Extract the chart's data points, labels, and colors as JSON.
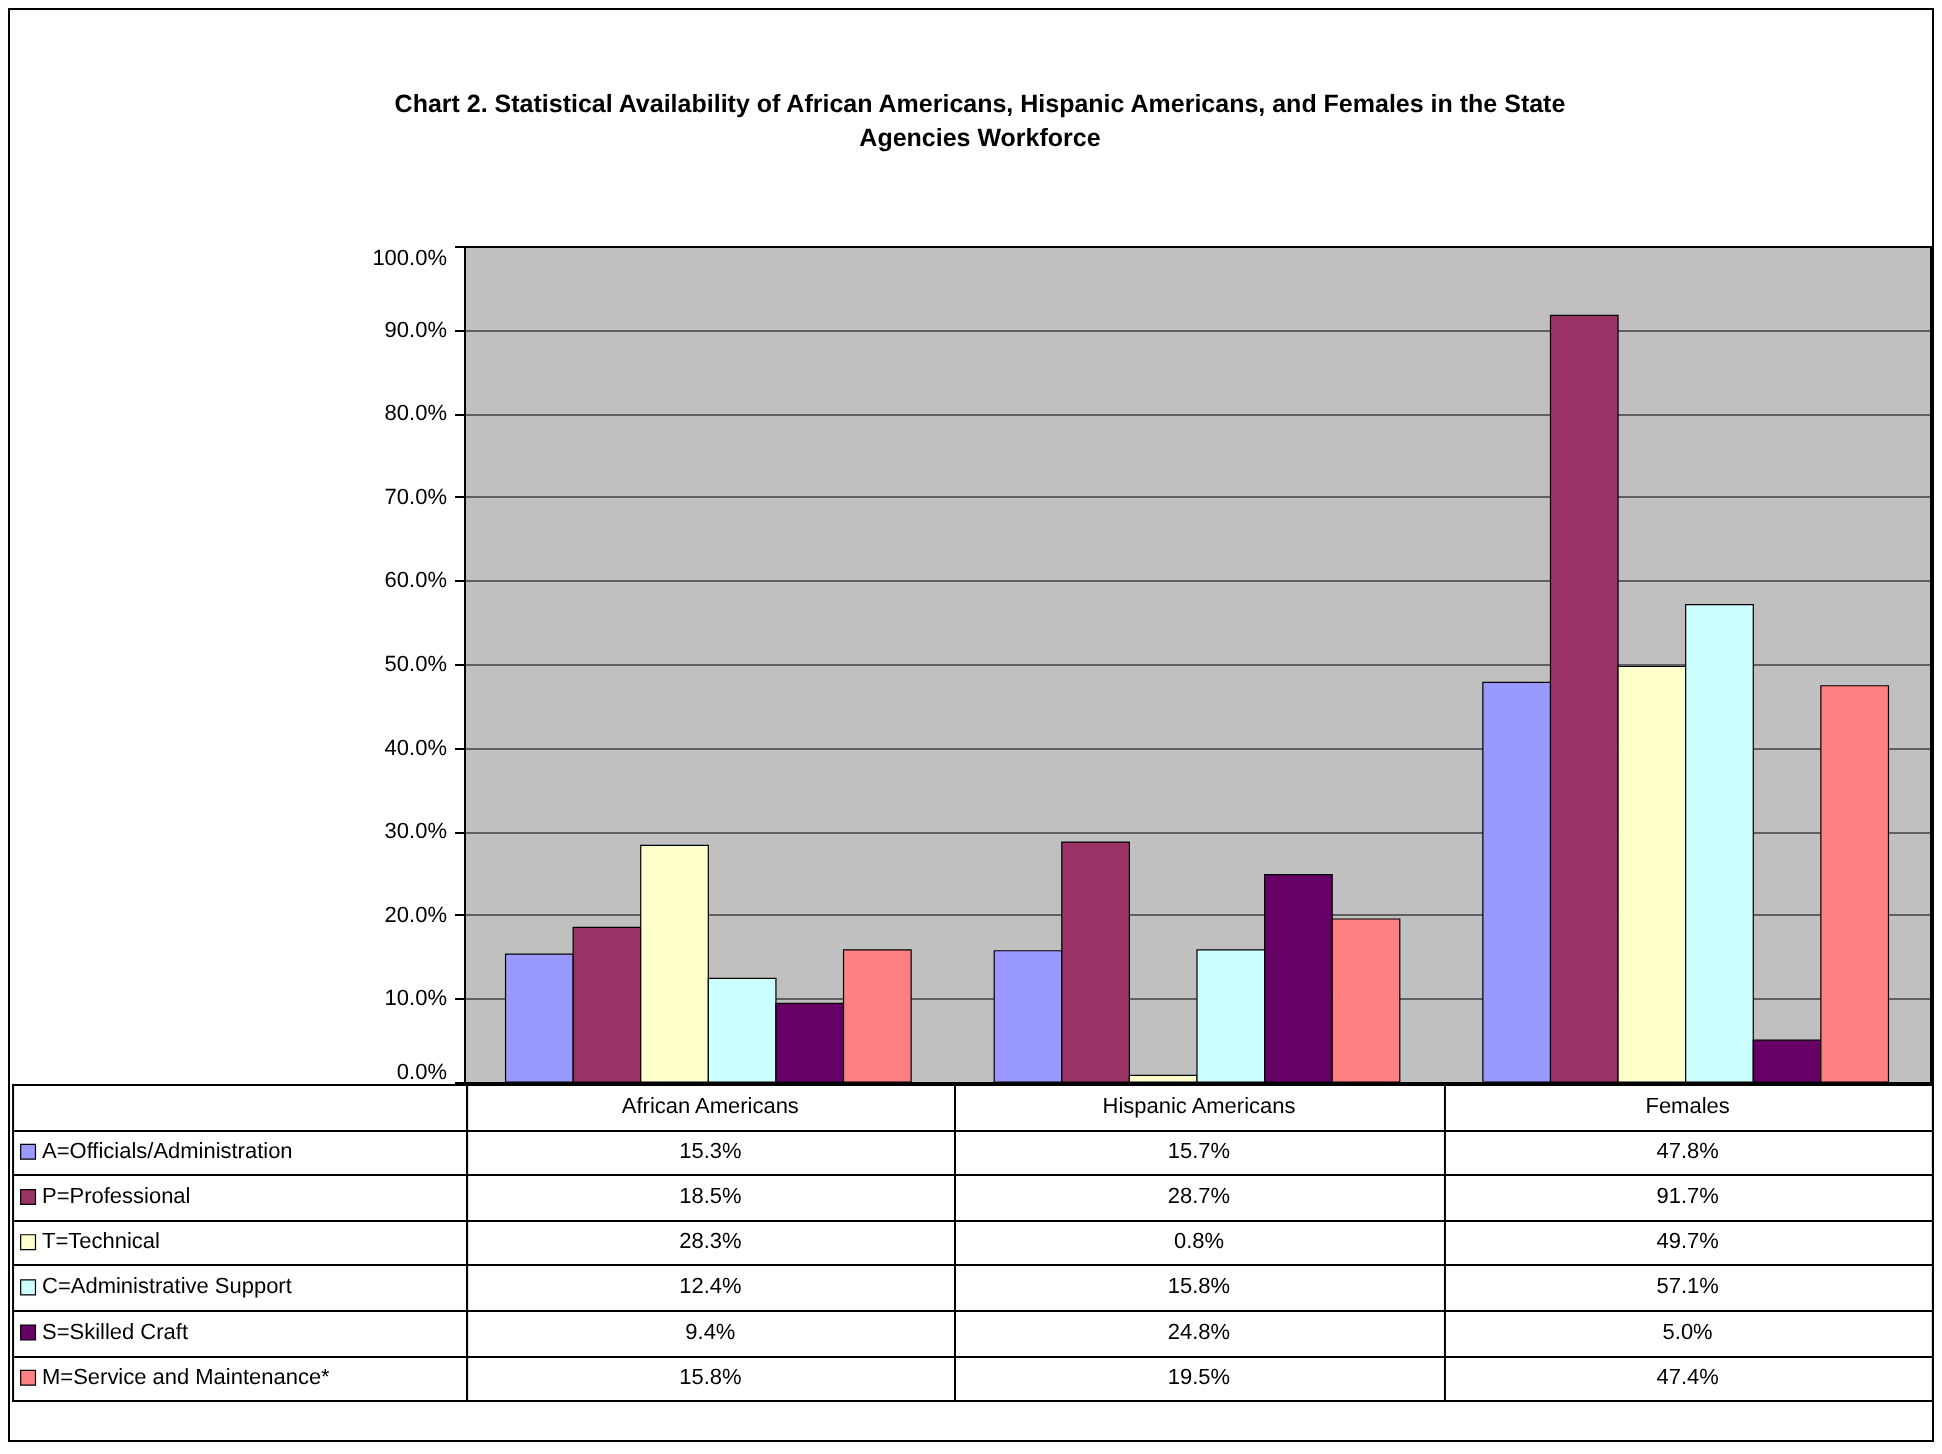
{
  "chart_data": {
    "type": "bar",
    "title": "Chart 2. Statistical Availability of African Americans, Hispanic Americans, and Females in the State Agencies Workforce",
    "categories": [
      "African Americans",
      "Hispanic Americans",
      "Females"
    ],
    "series": [
      {
        "name": "A=Officials/Administration",
        "color": "#9999ff",
        "values": [
          15.3,
          15.7,
          47.8
        ],
        "value_labels": [
          "15.3%",
          "15.7%",
          "47.8%"
        ]
      },
      {
        "name": "P=Professional",
        "color": "#993366",
        "values": [
          18.5,
          28.7,
          91.7
        ],
        "value_labels": [
          "18.5%",
          "28.7%",
          "91.7%"
        ]
      },
      {
        "name": "T=Technical",
        "color": "#ffffcc",
        "values": [
          28.3,
          0.8,
          49.7
        ],
        "value_labels": [
          "28.3%",
          "0.8%",
          "49.7%"
        ]
      },
      {
        "name": "C=Administrative Support",
        "color": "#ccffff",
        "values": [
          12.4,
          15.8,
          57.1
        ],
        "value_labels": [
          "12.4%",
          "15.8%",
          "57.1%"
        ]
      },
      {
        "name": "S=Skilled Craft",
        "color": "#660066",
        "values": [
          9.4,
          24.8,
          5.0
        ],
        "value_labels": [
          "9.4%",
          "24.8%",
          "5.0%"
        ]
      },
      {
        "name": "M=Service and Maintenance*",
        "color": "#ff8080",
        "values": [
          15.8,
          19.5,
          47.4
        ],
        "value_labels": [
          "15.8%",
          "19.5%",
          "47.4%"
        ]
      }
    ],
    "ylim": [
      0,
      100
    ],
    "yticks": [
      {
        "value": 0,
        "label": "0.0%"
      },
      {
        "value": 10,
        "label": "10.0%"
      },
      {
        "value": 20,
        "label": "20.0%"
      },
      {
        "value": 30,
        "label": "30.0%"
      },
      {
        "value": 40,
        "label": "40.0%"
      },
      {
        "value": 50,
        "label": "50.0%"
      },
      {
        "value": 60,
        "label": "60.0%"
      },
      {
        "value": 70,
        "label": "70.0%"
      },
      {
        "value": 80,
        "label": "80.0%"
      },
      {
        "value": 90,
        "label": "90.0%"
      },
      {
        "value": 100,
        "label": "100.0%"
      }
    ],
    "grid": "y",
    "legend": "bottom"
  }
}
